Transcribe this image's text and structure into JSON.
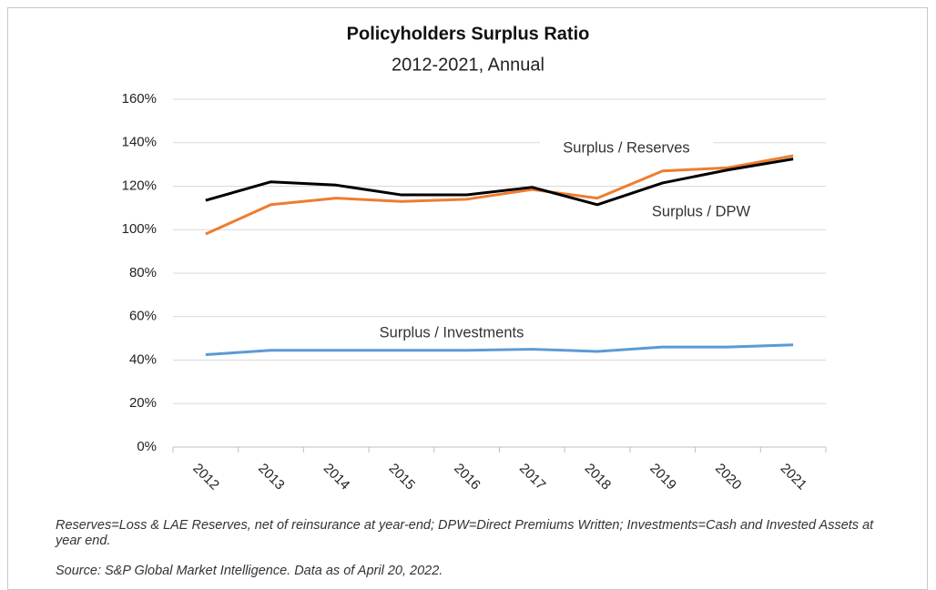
{
  "chart_data": {
    "type": "line",
    "title": "Policyholders Surplus Ratio",
    "subtitle": "2012-2021, Annual",
    "categories": [
      "2012",
      "2013",
      "2014",
      "2015",
      "2016",
      "2017",
      "2018",
      "2019",
      "2020",
      "2021"
    ],
    "series": [
      {
        "name": "Surplus / Reserves",
        "color": "#ed7d31",
        "values": [
          98,
          111.5,
          114.5,
          113,
          114,
          118.5,
          114.5,
          127,
          128.5,
          134
        ]
      },
      {
        "name": "Surplus / DPW",
        "color": "#000000",
        "values": [
          113.5,
          122,
          120.5,
          116,
          116,
          119.5,
          111.5,
          121.5,
          127.5,
          132.5
        ]
      },
      {
        "name": "Surplus / Investments",
        "color": "#5b9bd5",
        "values": [
          42.5,
          44.5,
          44.5,
          44.5,
          44.5,
          45,
          44,
          46,
          46,
          47
        ]
      }
    ],
    "ylim": [
      0,
      160
    ],
    "yticks": [
      {
        "value": 0,
        "label": "0%"
      },
      {
        "value": 20,
        "label": "20%"
      },
      {
        "value": 40,
        "label": "40%"
      },
      {
        "value": 60,
        "label": "60%"
      },
      {
        "value": 80,
        "label": "80%"
      },
      {
        "value": 100,
        "label": "100%"
      },
      {
        "value": 120,
        "label": "120%"
      },
      {
        "value": 140,
        "label": "140%"
      },
      {
        "value": 160,
        "label": "160%"
      }
    ],
    "grid": true,
    "notes": [
      "Reserves=Loss & LAE Reserves, net of reinsurance at year-end; DPW=Direct Premiums Written; Investments=Cash and Invested Assets at year end.",
      "Source: S&P Global Market Intelligence. Data as of April 20, 2022."
    ]
  }
}
